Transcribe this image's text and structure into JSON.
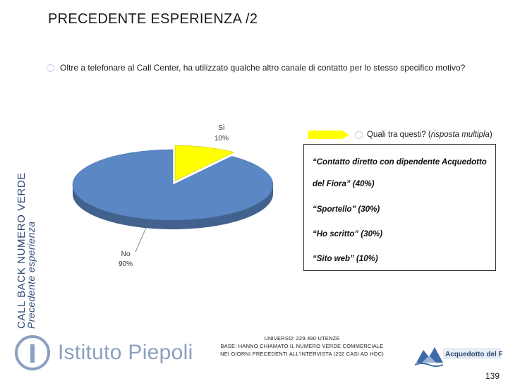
{
  "slide": {
    "title": "PRECEDENTE ESPERIENZA /2",
    "side_label_main": "CALL BACK NUMERO VERDE",
    "side_label_sub": "Precedente esperienza",
    "question": "Oltre a telefonare al Call Center, ha utilizzato qualche altro canale di contatto per lo stesso specifico motivo?",
    "page_number": "139"
  },
  "chart_data": {
    "type": "pie",
    "categories": [
      "Sì",
      "No"
    ],
    "values": [
      10,
      90
    ],
    "labels": [
      "Sì",
      "No"
    ],
    "value_labels": [
      "10%",
      "90%"
    ],
    "colors": [
      "#ffff00",
      "#5b87c4"
    ]
  },
  "followup": {
    "question": "Quali tra questi? (",
    "question_italic": "risposta multipla",
    "question_end": ")",
    "items": [
      "“Contatto diretto con dipendente Acquedotto",
      "del Fiora” (40%)",
      "“Sportello” (30%)",
      "“Ho scritto” (30%)",
      "“Sito web” (10%)"
    ]
  },
  "footer": {
    "logo_left_text": "Istituto Piepoli",
    "universe_line": "UNIVERSO: 229.490 UTENZE",
    "base_line1": "BASE: HANNO CHIAMATO IL NUMERO VERDE COMMERCIALE",
    "base_line2": "NEI GIORNI PRECEDENTI ALL’INTERVISTA (202 CASI AD HOC)",
    "logo_right_text": "Acquedotto del Fiora"
  },
  "colors": {
    "accent_blue": "#2c4a73",
    "pie_blue": "#5b87c4",
    "pie_yellow": "#ffff00"
  }
}
